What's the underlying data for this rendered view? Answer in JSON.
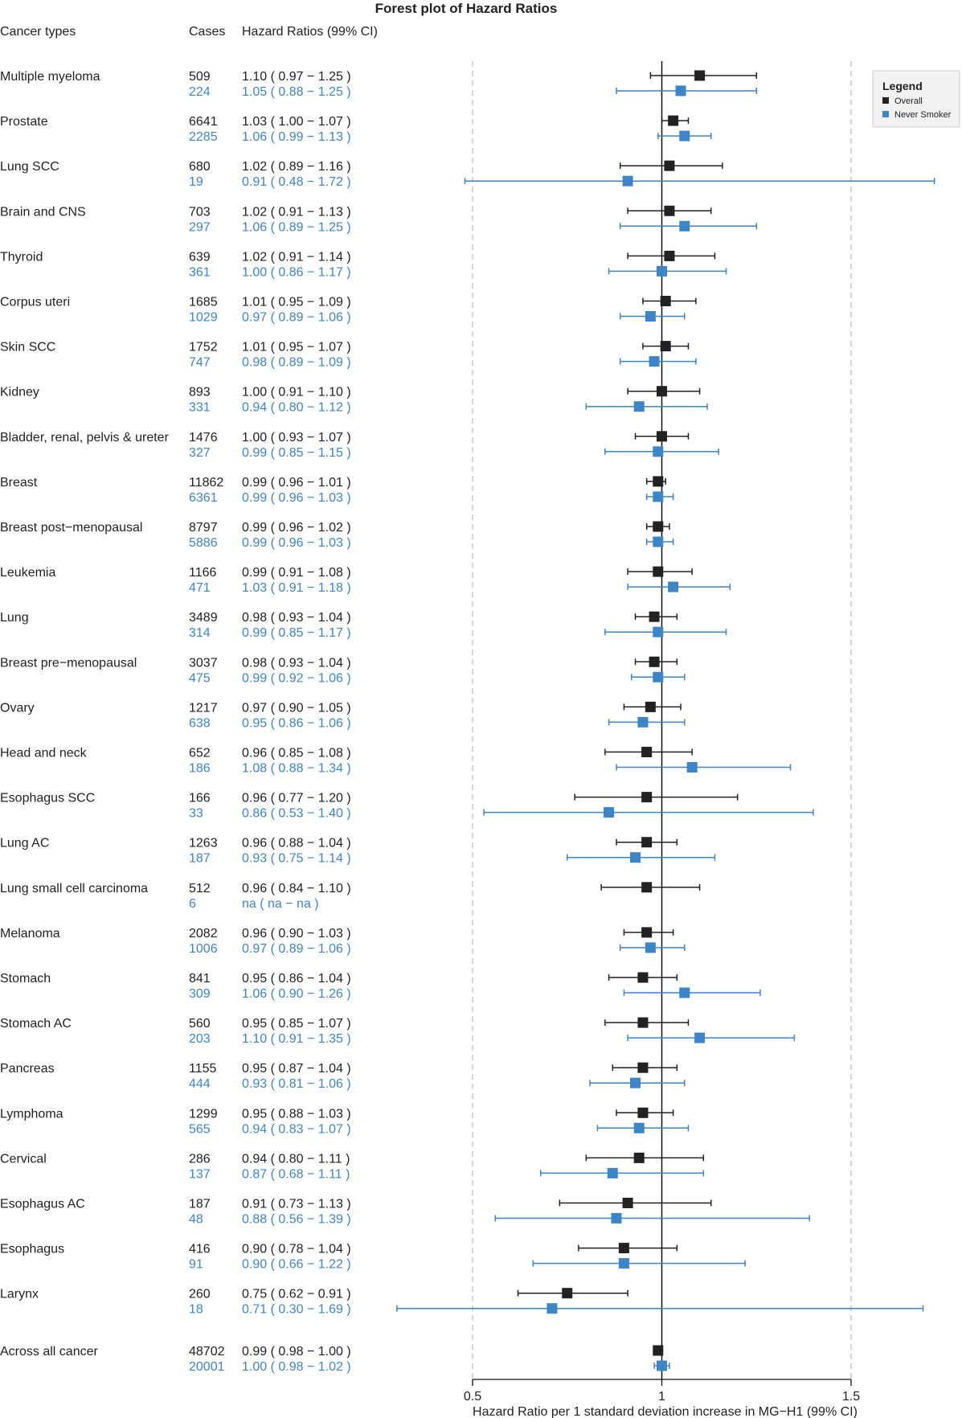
{
  "chart_data": {
    "type": "forest",
    "title": "Forest plot of Hazard Ratios",
    "columns": {
      "cancer": "Cancer types",
      "cases": "Cases",
      "hr": "Hazard Ratios (99% CI)"
    },
    "xlabel": "Hazard Ratio per 1 standard deviation increase in MG−H1 (99% CI)",
    "xlim": [
      0.5,
      1.5
    ],
    "xticks": [
      "0.5",
      "1",
      "1.5"
    ],
    "reference_lines": {
      "solid": 1.0,
      "dashed": [
        0.5,
        1.5
      ]
    },
    "legend": {
      "title": "Legend",
      "position": "top-right",
      "items": [
        "Overall",
        "Never Smoker"
      ]
    },
    "series_colors": {
      "overall": "#222222",
      "never": "#3d85c6"
    },
    "rows": [
      {
        "name": "Multiple myeloma",
        "overall": {
          "cases": "509",
          "text": "1.10 ( 0.97 − 1.25 )",
          "hr": 1.1,
          "lo": 0.97,
          "hi": 1.25
        },
        "never": {
          "cases": "224",
          "text": "1.05 ( 0.88 − 1.25 )",
          "hr": 1.05,
          "lo": 0.88,
          "hi": 1.25
        }
      },
      {
        "name": "Prostate",
        "overall": {
          "cases": "6641",
          "text": "1.03 ( 1.00 − 1.07 )",
          "hr": 1.03,
          "lo": 1.0,
          "hi": 1.07
        },
        "never": {
          "cases": "2285",
          "text": "1.06 ( 0.99 − 1.13 )",
          "hr": 1.06,
          "lo": 0.99,
          "hi": 1.13
        }
      },
      {
        "name": "Lung SCC",
        "overall": {
          "cases": "680",
          "text": "1.02 ( 0.89 − 1.16 )",
          "hr": 1.02,
          "lo": 0.89,
          "hi": 1.16
        },
        "never": {
          "cases": "19",
          "text": "0.91 ( 0.48 − 1.72 )",
          "hr": 0.91,
          "lo": 0.48,
          "hi": 1.72
        }
      },
      {
        "name": "Brain and CNS",
        "overall": {
          "cases": "703",
          "text": "1.02 ( 0.91 − 1.13 )",
          "hr": 1.02,
          "lo": 0.91,
          "hi": 1.13
        },
        "never": {
          "cases": "297",
          "text": "1.06 ( 0.89 − 1.25 )",
          "hr": 1.06,
          "lo": 0.89,
          "hi": 1.25
        }
      },
      {
        "name": "Thyroid",
        "overall": {
          "cases": "639",
          "text": "1.02 ( 0.91 − 1.14 )",
          "hr": 1.02,
          "lo": 0.91,
          "hi": 1.14
        },
        "never": {
          "cases": "361",
          "text": "1.00 ( 0.86 − 1.17 )",
          "hr": 1.0,
          "lo": 0.86,
          "hi": 1.17
        }
      },
      {
        "name": "Corpus uteri",
        "overall": {
          "cases": "1685",
          "text": "1.01 ( 0.95 − 1.09 )",
          "hr": 1.01,
          "lo": 0.95,
          "hi": 1.09
        },
        "never": {
          "cases": "1029",
          "text": "0.97 ( 0.89 − 1.06 )",
          "hr": 0.97,
          "lo": 0.89,
          "hi": 1.06
        }
      },
      {
        "name": "Skin SCC",
        "overall": {
          "cases": "1752",
          "text": "1.01 ( 0.95 − 1.07 )",
          "hr": 1.01,
          "lo": 0.95,
          "hi": 1.07
        },
        "never": {
          "cases": "747",
          "text": "0.98 ( 0.89 − 1.09 )",
          "hr": 0.98,
          "lo": 0.89,
          "hi": 1.09
        }
      },
      {
        "name": "Kidney",
        "overall": {
          "cases": "893",
          "text": "1.00 ( 0.91 − 1.10 )",
          "hr": 1.0,
          "lo": 0.91,
          "hi": 1.1
        },
        "never": {
          "cases": "331",
          "text": "0.94 ( 0.80 − 1.12 )",
          "hr": 0.94,
          "lo": 0.8,
          "hi": 1.12
        }
      },
      {
        "name": "Bladder, renal, pelvis & ureter",
        "overall": {
          "cases": "1476",
          "text": "1.00 ( 0.93 − 1.07 )",
          "hr": 1.0,
          "lo": 0.93,
          "hi": 1.07
        },
        "never": {
          "cases": "327",
          "text": "0.99 ( 0.85 − 1.15 )",
          "hr": 0.99,
          "lo": 0.85,
          "hi": 1.15
        }
      },
      {
        "name": "Breast",
        "overall": {
          "cases": "11862",
          "text": "0.99 ( 0.96 − 1.01 )",
          "hr": 0.99,
          "lo": 0.96,
          "hi": 1.01
        },
        "never": {
          "cases": "6361",
          "text": "0.99 ( 0.96 − 1.03 )",
          "hr": 0.99,
          "lo": 0.96,
          "hi": 1.03
        }
      },
      {
        "name": "Breast post−menopausal",
        "overall": {
          "cases": "8797",
          "text": "0.99 ( 0.96 − 1.02 )",
          "hr": 0.99,
          "lo": 0.96,
          "hi": 1.02
        },
        "never": {
          "cases": "5886",
          "text": "0.99 ( 0.96 − 1.03 )",
          "hr": 0.99,
          "lo": 0.96,
          "hi": 1.03
        }
      },
      {
        "name": "Leukemia",
        "overall": {
          "cases": "1166",
          "text": "0.99 ( 0.91 − 1.08 )",
          "hr": 0.99,
          "lo": 0.91,
          "hi": 1.08
        },
        "never": {
          "cases": "471",
          "text": "1.03 ( 0.91 − 1.18 )",
          "hr": 1.03,
          "lo": 0.91,
          "hi": 1.18
        }
      },
      {
        "name": "Lung",
        "overall": {
          "cases": "3489",
          "text": "0.98 ( 0.93 − 1.04 )",
          "hr": 0.98,
          "lo": 0.93,
          "hi": 1.04
        },
        "never": {
          "cases": "314",
          "text": "0.99 ( 0.85 − 1.17 )",
          "hr": 0.99,
          "lo": 0.85,
          "hi": 1.17
        }
      },
      {
        "name": "Breast pre−menopausal",
        "overall": {
          "cases": "3037",
          "text": "0.98 ( 0.93 − 1.04 )",
          "hr": 0.98,
          "lo": 0.93,
          "hi": 1.04
        },
        "never": {
          "cases": "475",
          "text": "0.99 ( 0.92 − 1.06 )",
          "hr": 0.99,
          "lo": 0.92,
          "hi": 1.06
        }
      },
      {
        "name": "Ovary",
        "overall": {
          "cases": "1217",
          "text": "0.97 ( 0.90 − 1.05 )",
          "hr": 0.97,
          "lo": 0.9,
          "hi": 1.05
        },
        "never": {
          "cases": "638",
          "text": "0.95 ( 0.86 − 1.06 )",
          "hr": 0.95,
          "lo": 0.86,
          "hi": 1.06
        }
      },
      {
        "name": "Head and neck",
        "overall": {
          "cases": "652",
          "text": "0.96 ( 0.85 − 1.08 )",
          "hr": 0.96,
          "lo": 0.85,
          "hi": 1.08
        },
        "never": {
          "cases": "186",
          "text": "1.08 ( 0.88 − 1.34 )",
          "hr": 1.08,
          "lo": 0.88,
          "hi": 1.34
        }
      },
      {
        "name": "Esophagus SCC",
        "overall": {
          "cases": "166",
          "text": "0.96 ( 0.77 − 1.20 )",
          "hr": 0.96,
          "lo": 0.77,
          "hi": 1.2
        },
        "never": {
          "cases": "33",
          "text": "0.86 ( 0.53 − 1.40 )",
          "hr": 0.86,
          "lo": 0.53,
          "hi": 1.4
        }
      },
      {
        "name": "Lung AC",
        "overall": {
          "cases": "1263",
          "text": "0.96 ( 0.88 − 1.04 )",
          "hr": 0.96,
          "lo": 0.88,
          "hi": 1.04
        },
        "never": {
          "cases": "187",
          "text": "0.93 ( 0.75 − 1.14 )",
          "hr": 0.93,
          "lo": 0.75,
          "hi": 1.14
        }
      },
      {
        "name": "Lung small cell carcinoma",
        "overall": {
          "cases": "512",
          "text": "0.96 ( 0.84 − 1.10 )",
          "hr": 0.96,
          "lo": 0.84,
          "hi": 1.1
        },
        "never": {
          "cases": "6",
          "text": "na ( na − na )",
          "hr": null,
          "lo": null,
          "hi": null
        }
      },
      {
        "name": "Melanoma",
        "overall": {
          "cases": "2082",
          "text": "0.96 ( 0.90 − 1.03 )",
          "hr": 0.96,
          "lo": 0.9,
          "hi": 1.03
        },
        "never": {
          "cases": "1006",
          "text": "0.97 ( 0.89 − 1.06 )",
          "hr": 0.97,
          "lo": 0.89,
          "hi": 1.06
        }
      },
      {
        "name": "Stomach",
        "overall": {
          "cases": "841",
          "text": "0.95 ( 0.86 − 1.04 )",
          "hr": 0.95,
          "lo": 0.86,
          "hi": 1.04
        },
        "never": {
          "cases": "309",
          "text": "1.06 ( 0.90 − 1.26 )",
          "hr": 1.06,
          "lo": 0.9,
          "hi": 1.26
        }
      },
      {
        "name": "Stomach AC",
        "overall": {
          "cases": "560",
          "text": "0.95 ( 0.85 − 1.07 )",
          "hr": 0.95,
          "lo": 0.85,
          "hi": 1.07
        },
        "never": {
          "cases": "203",
          "text": "1.10 ( 0.91 − 1.35 )",
          "hr": 1.1,
          "lo": 0.91,
          "hi": 1.35
        }
      },
      {
        "name": "Pancreas",
        "overall": {
          "cases": "1155",
          "text": "0.95 ( 0.87 − 1.04 )",
          "hr": 0.95,
          "lo": 0.87,
          "hi": 1.04
        },
        "never": {
          "cases": "444",
          "text": "0.93 ( 0.81 − 1.06 )",
          "hr": 0.93,
          "lo": 0.81,
          "hi": 1.06
        }
      },
      {
        "name": "Lymphoma",
        "overall": {
          "cases": "1299",
          "text": "0.95 ( 0.88 − 1.03 )",
          "hr": 0.95,
          "lo": 0.88,
          "hi": 1.03
        },
        "never": {
          "cases": "565",
          "text": "0.94 ( 0.83 − 1.07 )",
          "hr": 0.94,
          "lo": 0.83,
          "hi": 1.07
        }
      },
      {
        "name": "Cervical",
        "overall": {
          "cases": "286",
          "text": "0.94 ( 0.80 − 1.11 )",
          "hr": 0.94,
          "lo": 0.8,
          "hi": 1.11
        },
        "never": {
          "cases": "137",
          "text": "0.87 ( 0.68 − 1.11 )",
          "hr": 0.87,
          "lo": 0.68,
          "hi": 1.11
        }
      },
      {
        "name": "Esophagus AC",
        "overall": {
          "cases": "187",
          "text": "0.91 ( 0.73 − 1.13 )",
          "hr": 0.91,
          "lo": 0.73,
          "hi": 1.13
        },
        "never": {
          "cases": "48",
          "text": "0.88 ( 0.56 − 1.39 )",
          "hr": 0.88,
          "lo": 0.56,
          "hi": 1.39
        }
      },
      {
        "name": "Esophagus",
        "overall": {
          "cases": "416",
          "text": "0.90 ( 0.78 − 1.04 )",
          "hr": 0.9,
          "lo": 0.78,
          "hi": 1.04
        },
        "never": {
          "cases": "91",
          "text": "0.90 ( 0.66 − 1.22 )",
          "hr": 0.9,
          "lo": 0.66,
          "hi": 1.22
        }
      },
      {
        "name": "Larynx",
        "overall": {
          "cases": "260",
          "text": "0.75 ( 0.62 − 0.91 )",
          "hr": 0.75,
          "lo": 0.62,
          "hi": 0.91
        },
        "never": {
          "cases": "18",
          "text": "0.71 ( 0.30 − 1.69 )",
          "hr": 0.71,
          "lo": 0.3,
          "hi": 1.69
        }
      },
      {
        "name": "Across all cancer",
        "overall": {
          "cases": "48702",
          "text": "0.99 ( 0.98 − 1.00 )",
          "hr": 0.99,
          "lo": 0.98,
          "hi": 1.0
        },
        "never": {
          "cases": "20001",
          "text": "1.00 ( 0.98 − 1.02 )",
          "hr": 1.0,
          "lo": 0.98,
          "hi": 1.02
        }
      }
    ]
  }
}
